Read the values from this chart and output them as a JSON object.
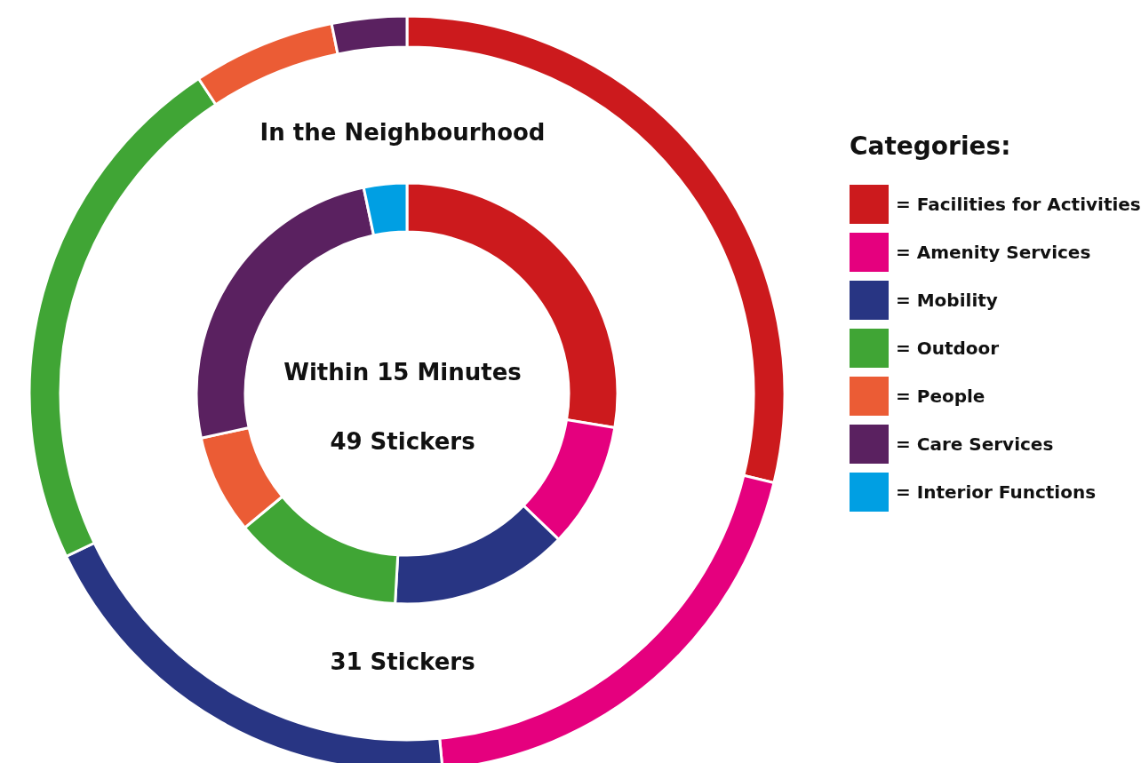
{
  "chart_data": {
    "type": "donut",
    "legend_title": "Categories:",
    "legend": "right",
    "categories": [
      "= Facilities for Activities",
      "= Amenity Services",
      "= Mobility",
      "= Outdoor",
      "= People",
      "= Care Services",
      "= Interior Functions"
    ],
    "colors": [
      "#cc1a1d",
      "#e5007e",
      "#283583",
      "#40a535",
      "#eb5c35",
      "#5a2160",
      "#009fe3"
    ],
    "series": [
      {
        "values": [
          27.6,
          9.6,
          13.7,
          13.1,
          7.6,
          25.1,
          3.3
        ]
      },
      {
        "values": [
          28.8,
          19.7,
          19.4,
          22.8,
          6.1,
          3.2,
          0
        ]
      }
    ],
    "annotations": [
      "In the Neighbourhood",
      "Within 15 Minutes",
      "49 Stickers",
      "31 Stickers"
    ]
  }
}
